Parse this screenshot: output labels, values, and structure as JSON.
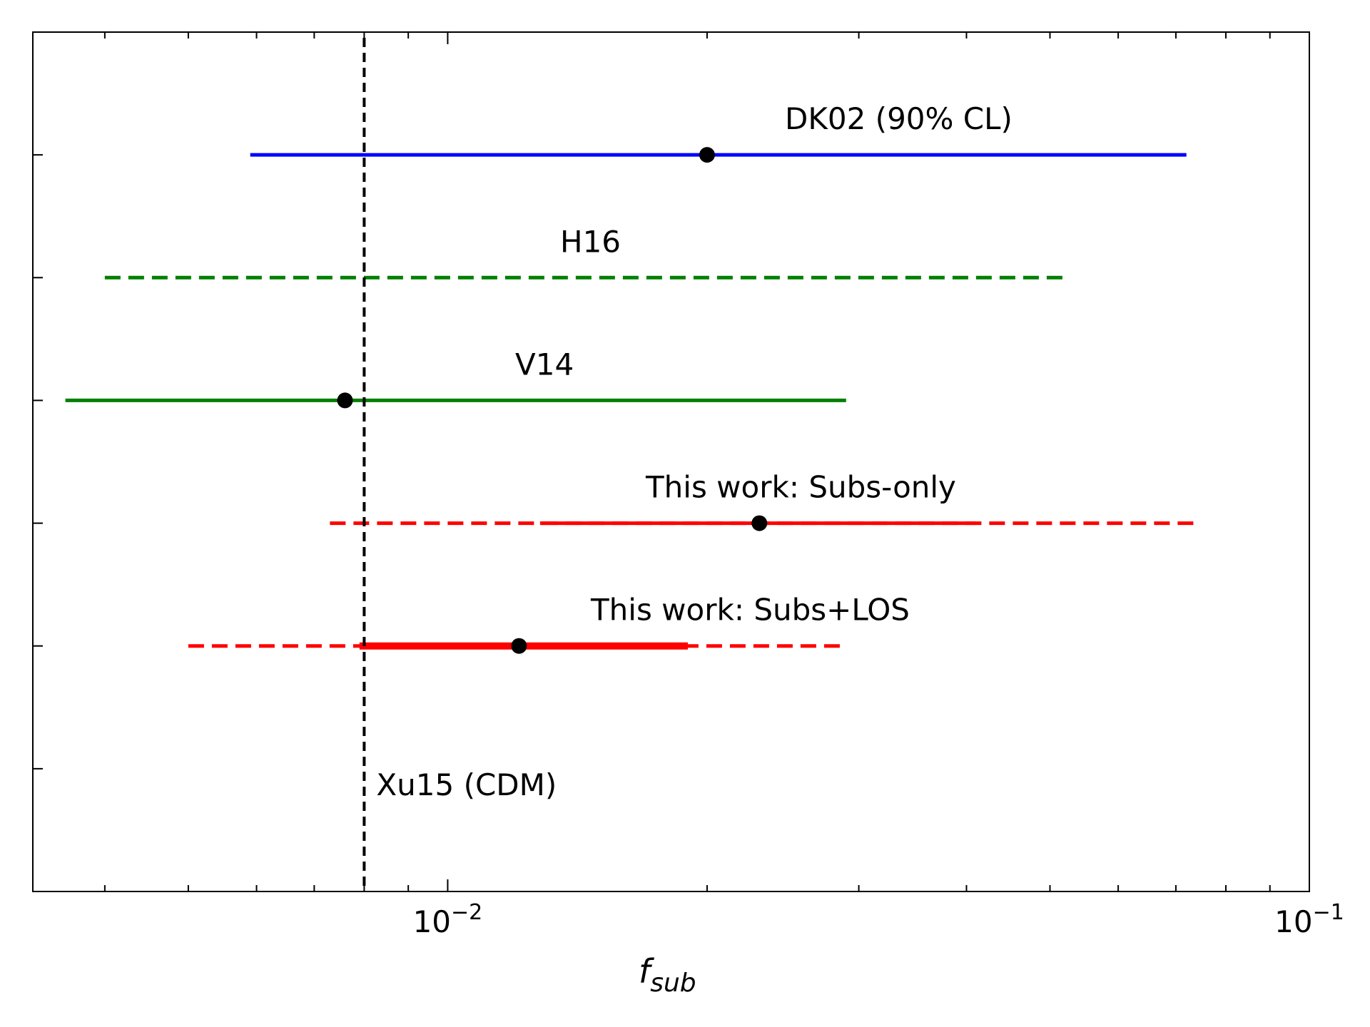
{
  "chart_data": {
    "type": "errorbar",
    "xscale": "log",
    "xlim": [
      0.0033,
      0.1
    ],
    "xlabel": "f",
    "xlabel_sub": "sub",
    "x_ticks": [
      {
        "base": "10",
        "exp": "−2",
        "value": 0.01
      },
      {
        "base": "10",
        "exp": "−1",
        "value": 0.1
      }
    ],
    "ylim": [
      0,
      7
    ],
    "y_ticks": [
      1,
      2,
      3,
      4,
      5,
      6
    ],
    "series": [
      {
        "label": "DK02 (90% CL)",
        "y": 6,
        "color": "#0000ff",
        "point": 0.02,
        "segments": [
          {
            "from": 0.0059,
            "to": 0.072,
            "style": "solid",
            "width": 5
          }
        ]
      },
      {
        "label": "H16",
        "y": 5,
        "color": "#008000",
        "point": null,
        "segments": [
          {
            "from": 0.004,
            "to": 0.052,
            "style": "dashed",
            "width": 5
          }
        ]
      },
      {
        "label": "V14",
        "y": 4,
        "color": "#008000",
        "point": 0.0076,
        "segments": [
          {
            "from": 0.0036,
            "to": 0.029,
            "style": "solid",
            "width": 5
          }
        ]
      },
      {
        "label": "This work: Subs-only",
        "y": 3,
        "color": "#ff0000",
        "point": 0.023,
        "segments": [
          {
            "from": 0.0073,
            "to": 0.074,
            "style": "dashed",
            "width": 5
          },
          {
            "from": 0.0128,
            "to": 0.041,
            "style": "solid",
            "width": 5
          }
        ]
      },
      {
        "label": "This work: Subs+LOS",
        "y": 2,
        "color": "#ff0000",
        "point": 0.0121,
        "segments": [
          {
            "from": 0.005,
            "to": 0.029,
            "style": "dashed",
            "width": 5
          },
          {
            "from": 0.0079,
            "to": 0.019,
            "style": "solid",
            "width": 10
          }
        ]
      }
    ],
    "reference_line": {
      "label": "Xu15 (CDM)",
      "x": 0.008,
      "style": "dashed",
      "color": "#000000"
    }
  }
}
